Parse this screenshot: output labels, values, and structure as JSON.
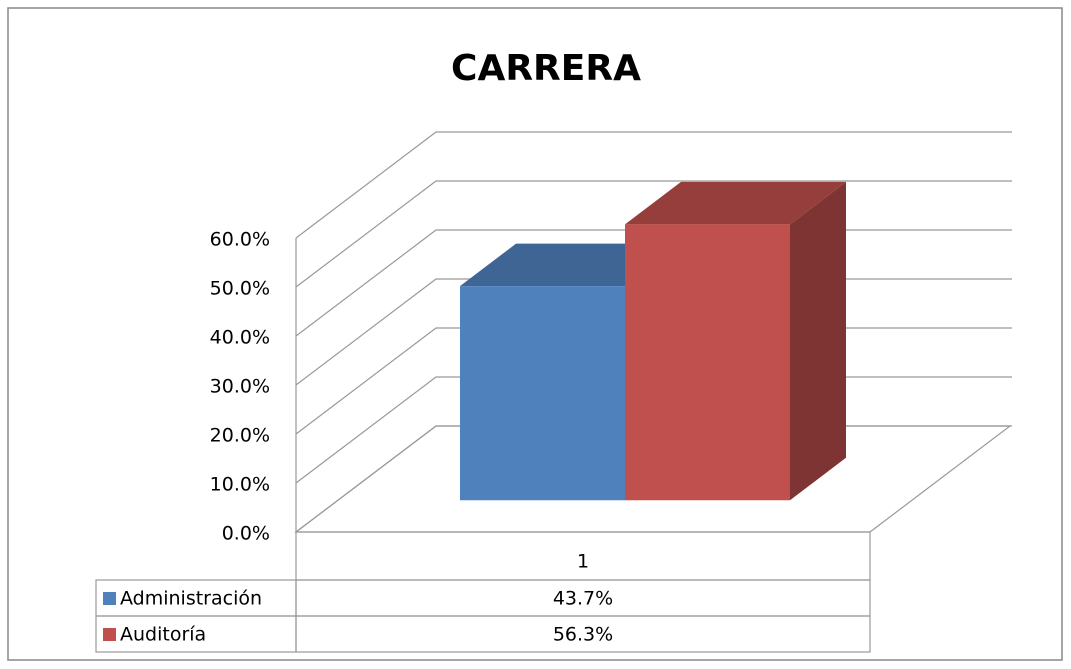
{
  "chart_data": {
    "type": "bar3d",
    "title": "CARRERA",
    "categories": [
      "1"
    ],
    "series": [
      {
        "name": "Administración",
        "color": "#4f81bd",
        "values": [
          43.7
        ],
        "value_labels": [
          "43.7%"
        ]
      },
      {
        "name": "Auditoría",
        "color": "#c0504d",
        "values": [
          56.3
        ],
        "value_labels": [
          "56.3%"
        ]
      }
    ],
    "ylim": [
      0,
      60
    ],
    "yticks": [
      {
        "value": 0,
        "label": "0.0%"
      },
      {
        "value": 10,
        "label": "10.0%"
      },
      {
        "value": 20,
        "label": "20.0%"
      },
      {
        "value": 30,
        "label": "30.0%"
      },
      {
        "value": 40,
        "label": "40.0%"
      },
      {
        "value": 50,
        "label": "50.0%"
      },
      {
        "value": 60,
        "label": "60.0%"
      }
    ],
    "grid": true
  }
}
